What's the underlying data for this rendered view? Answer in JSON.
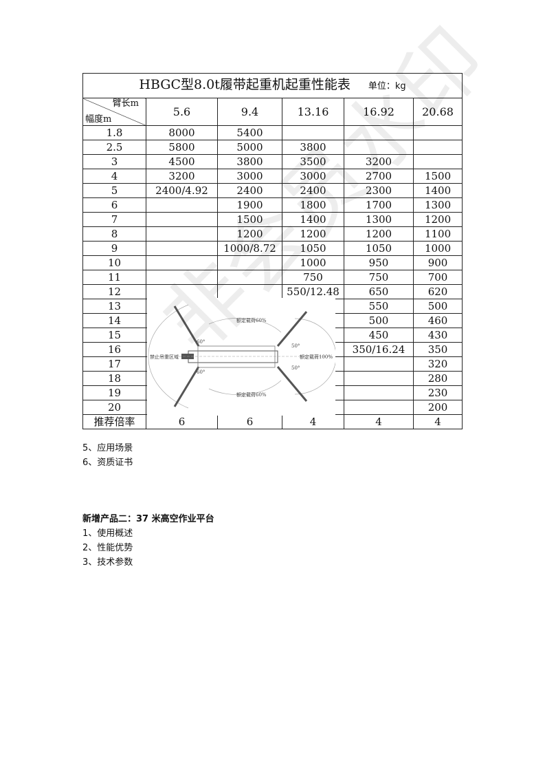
{
  "table": {
    "title": "HBGC型8.0t履带起重机起重性能表",
    "unit": "单位：kg",
    "corner_top": "臂长m",
    "corner_bottom": "幅度m",
    "boom_lengths": [
      "5.6",
      "9.4",
      "13.16",
      "16.92",
      "20.68"
    ],
    "rows": [
      [
        "1.8",
        "8000",
        "5400",
        "",
        "",
        ""
      ],
      [
        "2.5",
        "5800",
        "5000",
        "3800",
        "",
        ""
      ],
      [
        "3",
        "4500",
        "3800",
        "3500",
        "3200",
        ""
      ],
      [
        "4",
        "3200",
        "3000",
        "3000",
        "2700",
        "1500"
      ],
      [
        "5",
        "2400/4.92",
        "2400",
        "2400",
        "2300",
        "1400"
      ],
      [
        "6",
        "",
        "1900",
        "1800",
        "1700",
        "1300"
      ],
      [
        "7",
        "",
        "1500",
        "1400",
        "1300",
        "1200"
      ],
      [
        "8",
        "",
        "1200",
        "1200",
        "1200",
        "1100"
      ],
      [
        "9",
        "",
        "1000/8.72",
        "1050",
        "1050",
        "1000"
      ],
      [
        "10",
        "",
        "",
        "1000",
        "950",
        "900"
      ],
      [
        "11",
        "",
        "",
        "750",
        "750",
        "700"
      ],
      [
        "12",
        "",
        "",
        "550/12.48",
        "650",
        "620"
      ],
      [
        "13",
        "",
        "",
        "",
        "550",
        "500"
      ],
      [
        "14",
        "",
        "",
        "",
        "500",
        "460"
      ],
      [
        "15",
        "",
        "",
        "",
        "450",
        "430"
      ],
      [
        "16",
        "",
        "",
        "",
        "350/16.24",
        "350"
      ],
      [
        "17",
        "",
        "",
        "",
        "",
        "320"
      ],
      [
        "18",
        "",
        "",
        "",
        "",
        "280"
      ],
      [
        "19",
        "",
        "",
        "",
        "",
        "230"
      ],
      [
        "20",
        "",
        "",
        "",
        "",
        "200"
      ]
    ],
    "ratio_label": "推荐倍率",
    "ratios": [
      "6",
      "6",
      "4",
      "4",
      "4"
    ]
  },
  "diagram": {
    "no_lift": "禁止吊重区域",
    "rated60": "额定载荷60%",
    "rated100": "额定载荷100%",
    "angle60": "60°",
    "angle50": "50°"
  },
  "watermark": "非会员水印",
  "body": {
    "items1": [
      "5、应用场景",
      "6、资质证书"
    ],
    "heading": "新增产品二：37 米高空作业平台",
    "items2": [
      "1、使用概述",
      "2、性能优势",
      "3、技术参数"
    ]
  }
}
